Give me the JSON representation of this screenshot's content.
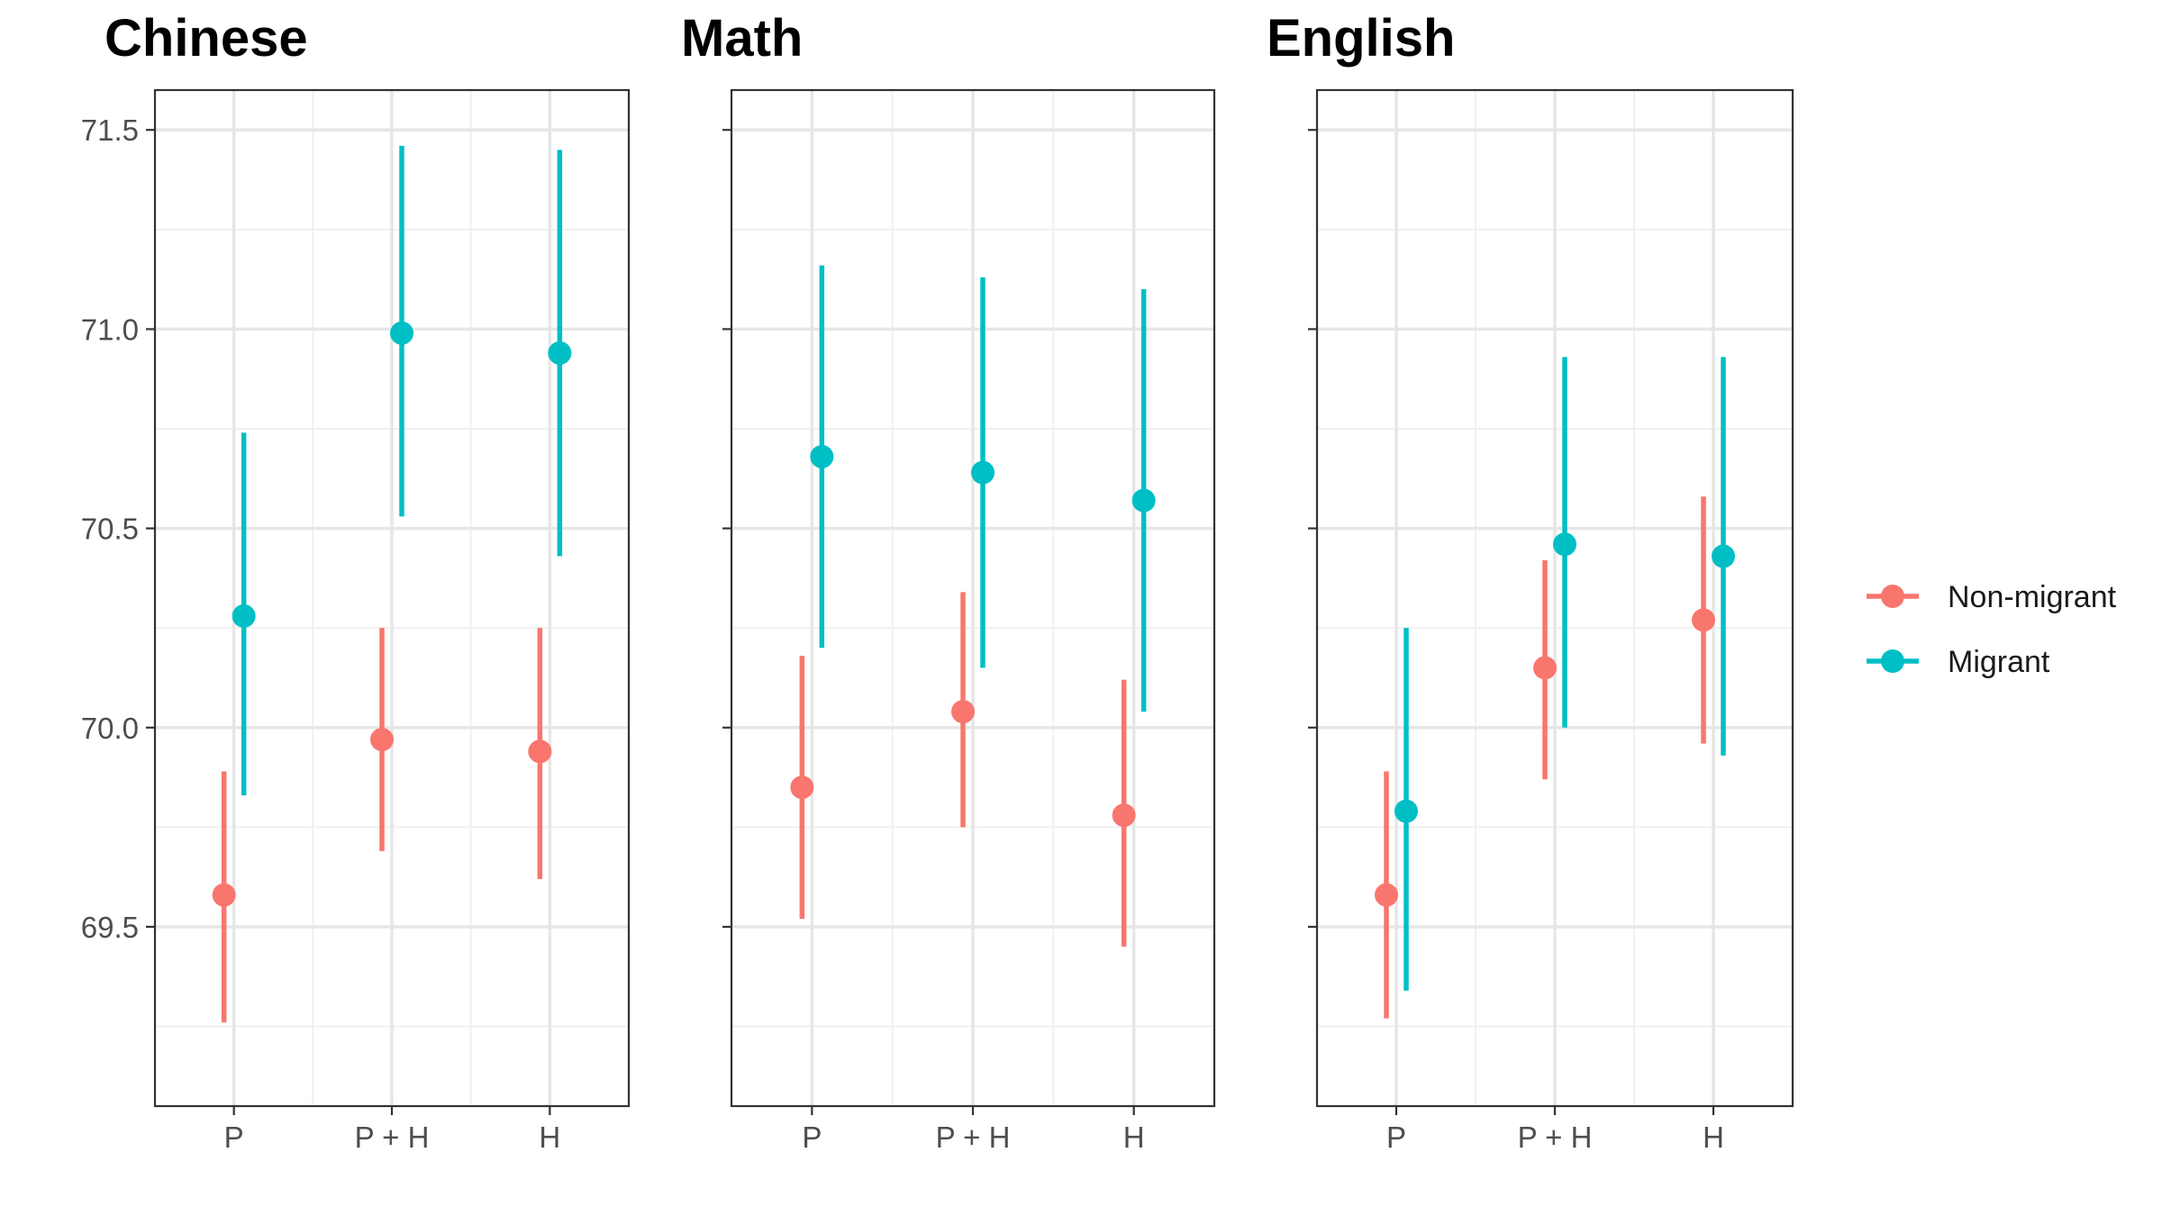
{
  "chart_data": {
    "type": "scatter",
    "subtype": "point-range (dodged), faceted",
    "categories": [
      "P",
      "P + H",
      "H"
    ],
    "y_ticks": [
      69.5,
      70.0,
      70.5,
      71.0,
      71.5
    ],
    "ylim": [
      69.05,
      71.6
    ],
    "grid": true,
    "legend_position": "right",
    "series_colors": {
      "Non-migrant": "#F8766D",
      "Migrant": "#00BFC4"
    },
    "legend": [
      {
        "name": "Non-migrant",
        "color": "#F8766D"
      },
      {
        "name": "Migrant",
        "color": "#00BFC4"
      }
    ],
    "facets": [
      {
        "title": "Chinese",
        "series": [
          {
            "name": "Non-migrant",
            "values": [
              69.58,
              69.97,
              69.94
            ],
            "lower": [
              69.26,
              69.69,
              69.62
            ],
            "upper": [
              69.89,
              70.25,
              70.25
            ]
          },
          {
            "name": "Migrant",
            "values": [
              70.28,
              70.99,
              70.94
            ],
            "lower": [
              69.83,
              70.53,
              70.43
            ],
            "upper": [
              70.74,
              71.46,
              71.45
            ]
          }
        ]
      },
      {
        "title": "Math",
        "series": [
          {
            "name": "Non-migrant",
            "values": [
              69.85,
              70.04,
              69.78
            ],
            "lower": [
              69.52,
              69.75,
              69.45
            ],
            "upper": [
              70.18,
              70.34,
              70.12
            ]
          },
          {
            "name": "Migrant",
            "values": [
              70.68,
              70.64,
              70.57
            ],
            "lower": [
              70.2,
              70.15,
              70.04
            ],
            "upper": [
              71.16,
              71.13,
              71.1
            ]
          }
        ]
      },
      {
        "title": "English",
        "series": [
          {
            "name": "Non-migrant",
            "values": [
              69.58,
              70.15,
              70.27
            ],
            "lower": [
              69.27,
              69.87,
              69.96
            ],
            "upper": [
              69.89,
              70.42,
              70.58
            ]
          },
          {
            "name": "Migrant",
            "values": [
              69.79,
              70.46,
              70.43
            ],
            "lower": [
              69.34,
              70.0,
              69.93
            ],
            "upper": [
              70.25,
              70.93,
              70.93
            ]
          }
        ]
      }
    ]
  }
}
